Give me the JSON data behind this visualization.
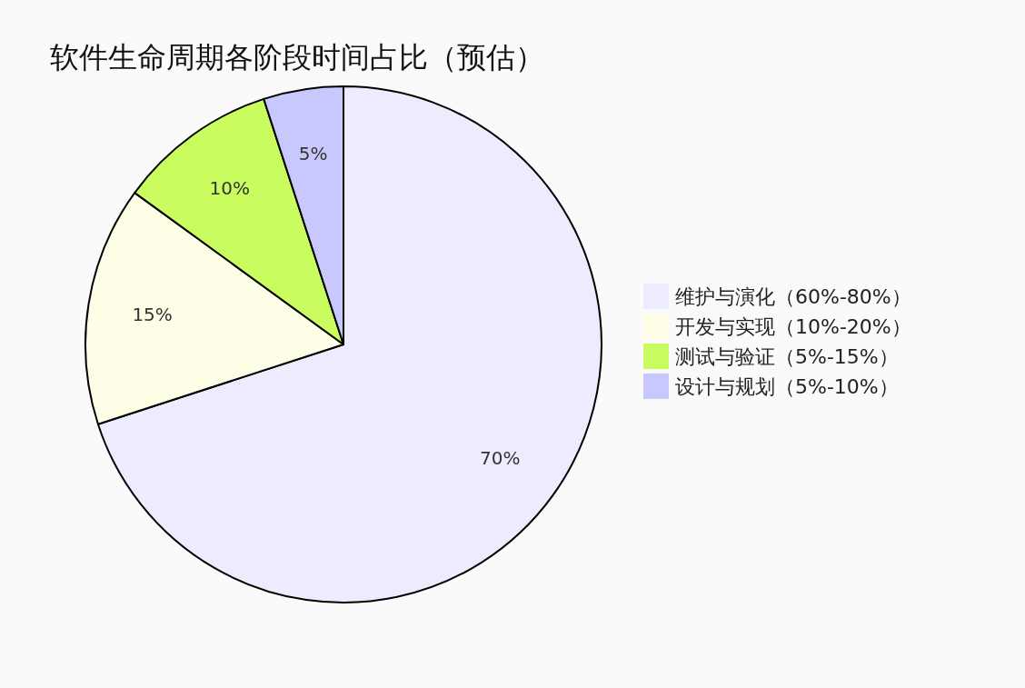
{
  "chart_data": {
    "type": "pie",
    "title": "软件生命周期各阶段时间占比（预估）",
    "categories": [
      "维护与演化（60%-80%）",
      "开发与实现（10%-20%）",
      "测试与验证（5%-15%）",
      "设计与规划（5%-10%）"
    ],
    "values": [
      70,
      15,
      10,
      5
    ],
    "colors": [
      "#ececfe",
      "#fefee6",
      "#c9fd5f",
      "#c8c8fe"
    ],
    "value_labels": [
      "70%",
      "15%",
      "10%",
      "5%"
    ],
    "legend": "right"
  }
}
